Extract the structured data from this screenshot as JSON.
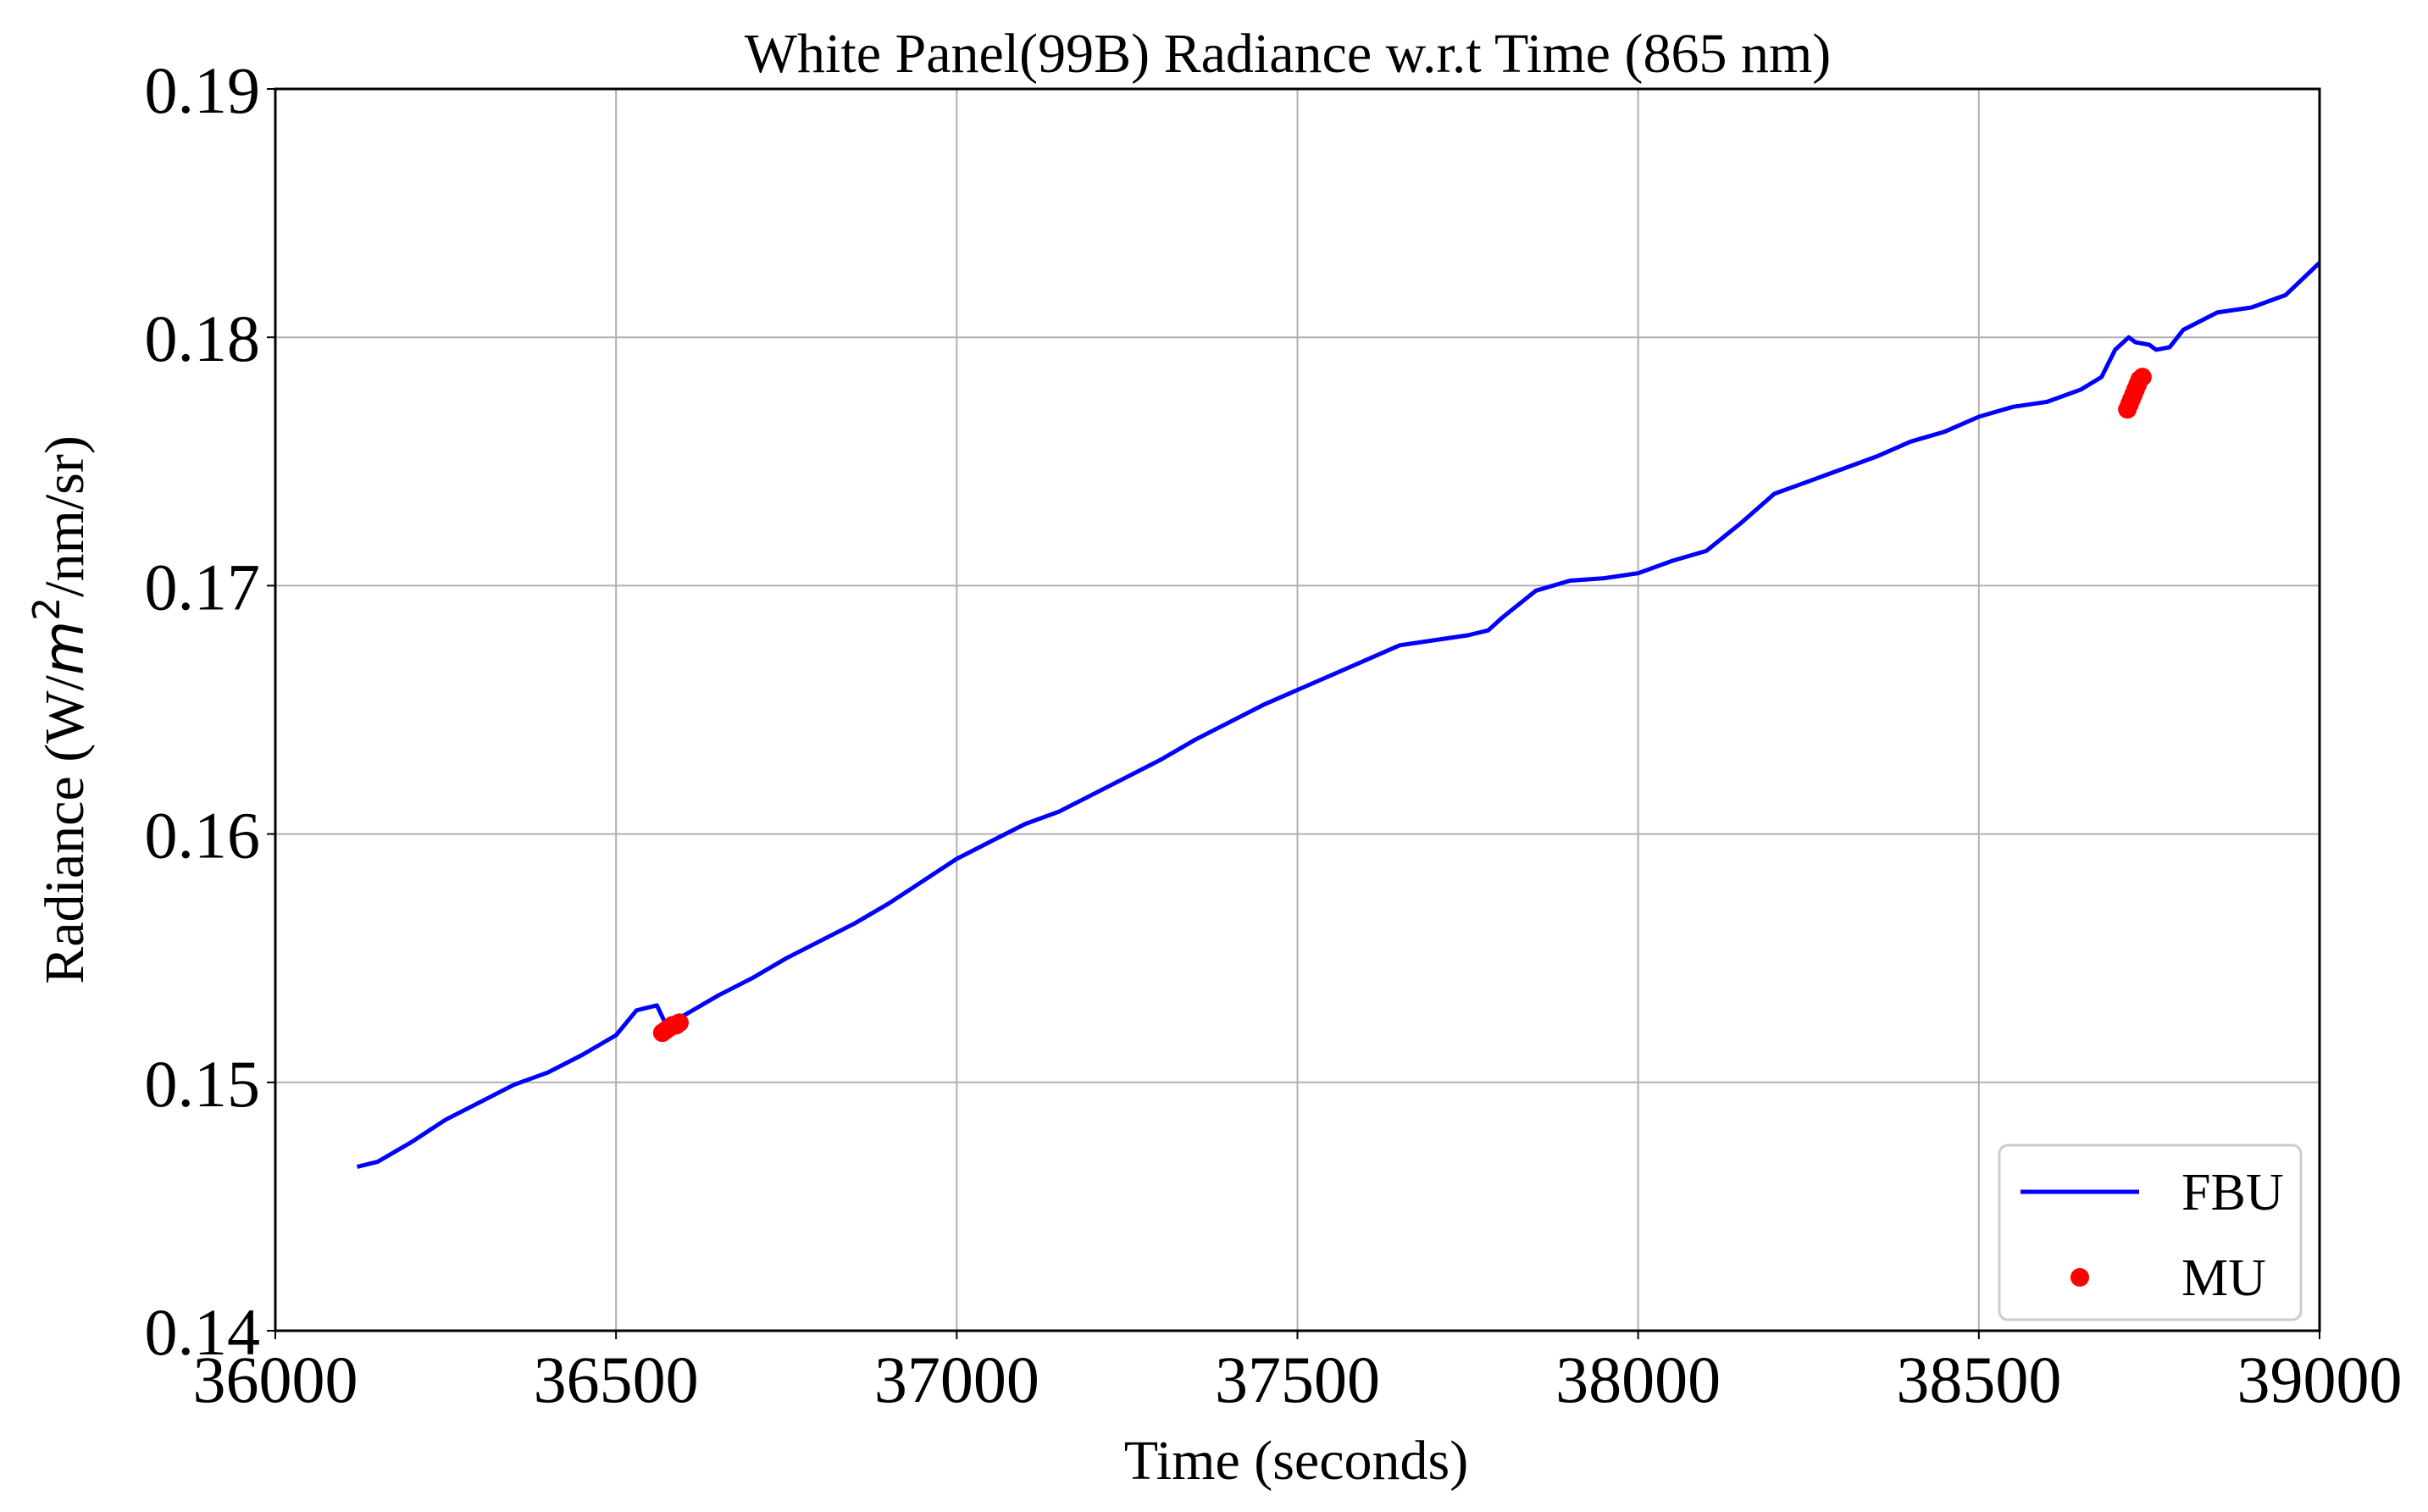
{
  "chart_data": {
    "type": "line",
    "title": "White Panel(99B) Radiance w.r.t Time (865 nm)",
    "xlabel": "Time (seconds)",
    "ylabel_prefix": "Radiance (W/",
    "ylabel_unit_italic": "m",
    "ylabel_superscript": "2",
    "ylabel_suffix": "/nm/sr)",
    "xlim": [
      36000,
      39000
    ],
    "ylim": [
      0.14,
      0.19
    ],
    "xticks": [
      36000,
      36500,
      37000,
      37500,
      38000,
      38500,
      39000
    ],
    "yticks": [
      0.14,
      0.15,
      0.16,
      0.17,
      0.18,
      0.19
    ],
    "xtick_labels": [
      "36000",
      "36500",
      "37000",
      "37500",
      "38000",
      "38500",
      "39000"
    ],
    "ytick_labels": [
      "0.14",
      "0.15",
      "0.16",
      "0.17",
      "0.18",
      "0.19"
    ],
    "grid": true,
    "legend_position": "lower-right",
    "series": [
      {
        "name": "FBU",
        "kind": "line",
        "color": "#0000ff",
        "x": [
          36120,
          36150,
          36200,
          36250,
          36300,
          36350,
          36400,
          36450,
          36500,
          36530,
          36545,
          36560,
          36572,
          36580,
          36600,
          36650,
          36700,
          36750,
          36800,
          36850,
          36900,
          36950,
          37000,
          37050,
          37100,
          37150,
          37200,
          37250,
          37300,
          37350,
          37400,
          37450,
          37500,
          37550,
          37600,
          37650,
          37700,
          37750,
          37780,
          37800,
          37850,
          37900,
          37950,
          38000,
          38050,
          38100,
          38150,
          38200,
          38250,
          38300,
          38350,
          38400,
          38450,
          38500,
          38550,
          38600,
          38650,
          38680,
          38700,
          38720,
          38730,
          38750,
          38760,
          38780,
          38800,
          38850,
          38900,
          38950,
          39000
        ],
        "y": [
          0.1466,
          0.1468,
          0.1476,
          0.1485,
          0.1492,
          0.1499,
          0.1504,
          0.1511,
          0.1519,
          0.1529,
          0.153,
          0.1531,
          0.1524,
          0.1525,
          0.1527,
          0.1535,
          0.1542,
          0.155,
          0.1557,
          0.1564,
          0.1572,
          0.1581,
          0.159,
          0.1597,
          0.1604,
          0.1609,
          0.1616,
          0.1623,
          0.163,
          0.1638,
          0.1645,
          0.1652,
          0.1658,
          0.1664,
          0.167,
          0.1676,
          0.1678,
          0.168,
          0.1682,
          0.1687,
          0.1698,
          0.1702,
          0.1703,
          0.1705,
          0.171,
          0.1714,
          0.1725,
          0.1737,
          0.1742,
          0.1747,
          0.1752,
          0.1758,
          0.1762,
          0.1768,
          0.1772,
          0.1774,
          0.1779,
          0.1784,
          0.1795,
          0.18,
          0.1798,
          0.1797,
          0.1795,
          0.1796,
          0.1803,
          0.181,
          0.1812,
          0.1817,
          0.183
        ]
      },
      {
        "name": "MU",
        "kind": "scatter",
        "color": "#ff0000",
        "x": [
          36568,
          36573,
          36578,
          36583,
          36588,
          36593,
          38718,
          38721,
          38724,
          38727,
          38730,
          38733,
          38736,
          38740
        ],
        "y": [
          0.152,
          0.1521,
          0.1522,
          0.1523,
          0.1523,
          0.1524,
          0.1771,
          0.1773,
          0.1775,
          0.1777,
          0.1779,
          0.1781,
          0.1783,
          0.1784
        ]
      }
    ]
  }
}
